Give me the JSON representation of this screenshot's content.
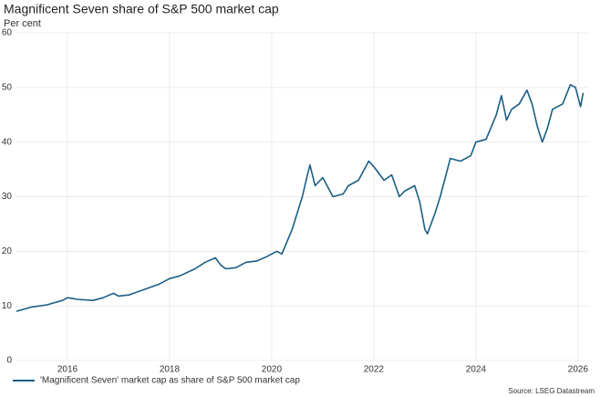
{
  "chart_data": {
    "type": "line",
    "title": "Magnificent Seven share of S&P 500 market cap",
    "subtitle": "Per cent",
    "source": "Source: LSEG Datastream",
    "x": [
      2015.0,
      2015.3,
      2015.6,
      2015.9,
      2016.0,
      2016.2,
      2016.5,
      2016.7,
      2016.9,
      2017.0,
      2017.2,
      2017.5,
      2017.8,
      2018.0,
      2018.2,
      2018.5,
      2018.7,
      2018.9,
      2019.0,
      2019.1,
      2019.3,
      2019.5,
      2019.7,
      2019.9,
      2020.1,
      2020.2,
      2020.4,
      2020.6,
      2020.7,
      2020.75,
      2020.85,
      2021.0,
      2021.2,
      2021.4,
      2021.5,
      2021.7,
      2021.9,
      2022.0,
      2022.2,
      2022.35,
      2022.5,
      2022.6,
      2022.8,
      2022.9,
      2023.0,
      2023.05,
      2023.2,
      2023.3,
      2023.5,
      2023.7,
      2023.9,
      2024.0,
      2024.2,
      2024.4,
      2024.5,
      2024.6,
      2024.7,
      2024.85,
      2025.0,
      2025.1,
      2025.2,
      2025.3,
      2025.4,
      2025.5,
      2025.7,
      2025.85,
      2025.95,
      2026.05,
      2026.1
    ],
    "series": [
      {
        "name": "'Magnificent Seven' market cap as share of S&P 500 market cap",
        "color": "#1b5e85",
        "values": [
          9.0,
          9.8,
          10.2,
          11.0,
          11.5,
          11.2,
          11.0,
          11.5,
          12.3,
          11.8,
          12.0,
          13.0,
          14.0,
          15.0,
          15.5,
          16.8,
          18.0,
          18.8,
          17.5,
          16.8,
          17.0,
          18.0,
          18.2,
          19.0,
          20.0,
          19.5,
          24.0,
          30.0,
          34.0,
          35.8,
          32.0,
          33.5,
          30.0,
          30.5,
          32.0,
          33.0,
          36.5,
          35.5,
          33.0,
          34.0,
          30.0,
          31.0,
          32.0,
          29.0,
          24.0,
          23.2,
          27.0,
          30.0,
          37.0,
          36.5,
          37.5,
          40.0,
          40.5,
          45.0,
          48.5,
          44.0,
          46.0,
          47.0,
          49.5,
          47.0,
          43.0,
          40.0,
          42.5,
          46.0,
          47.0,
          50.5,
          50.0,
          46.5,
          49.0
        ]
      }
    ],
    "xlim": [
      2015.0,
      2026.2
    ],
    "xticks": [
      2016,
      2018,
      2020,
      2022,
      2024,
      2026
    ],
    "ylim": [
      0,
      60
    ],
    "yticks": [
      0,
      10,
      20,
      30,
      40,
      50,
      60
    ],
    "grid": true
  }
}
